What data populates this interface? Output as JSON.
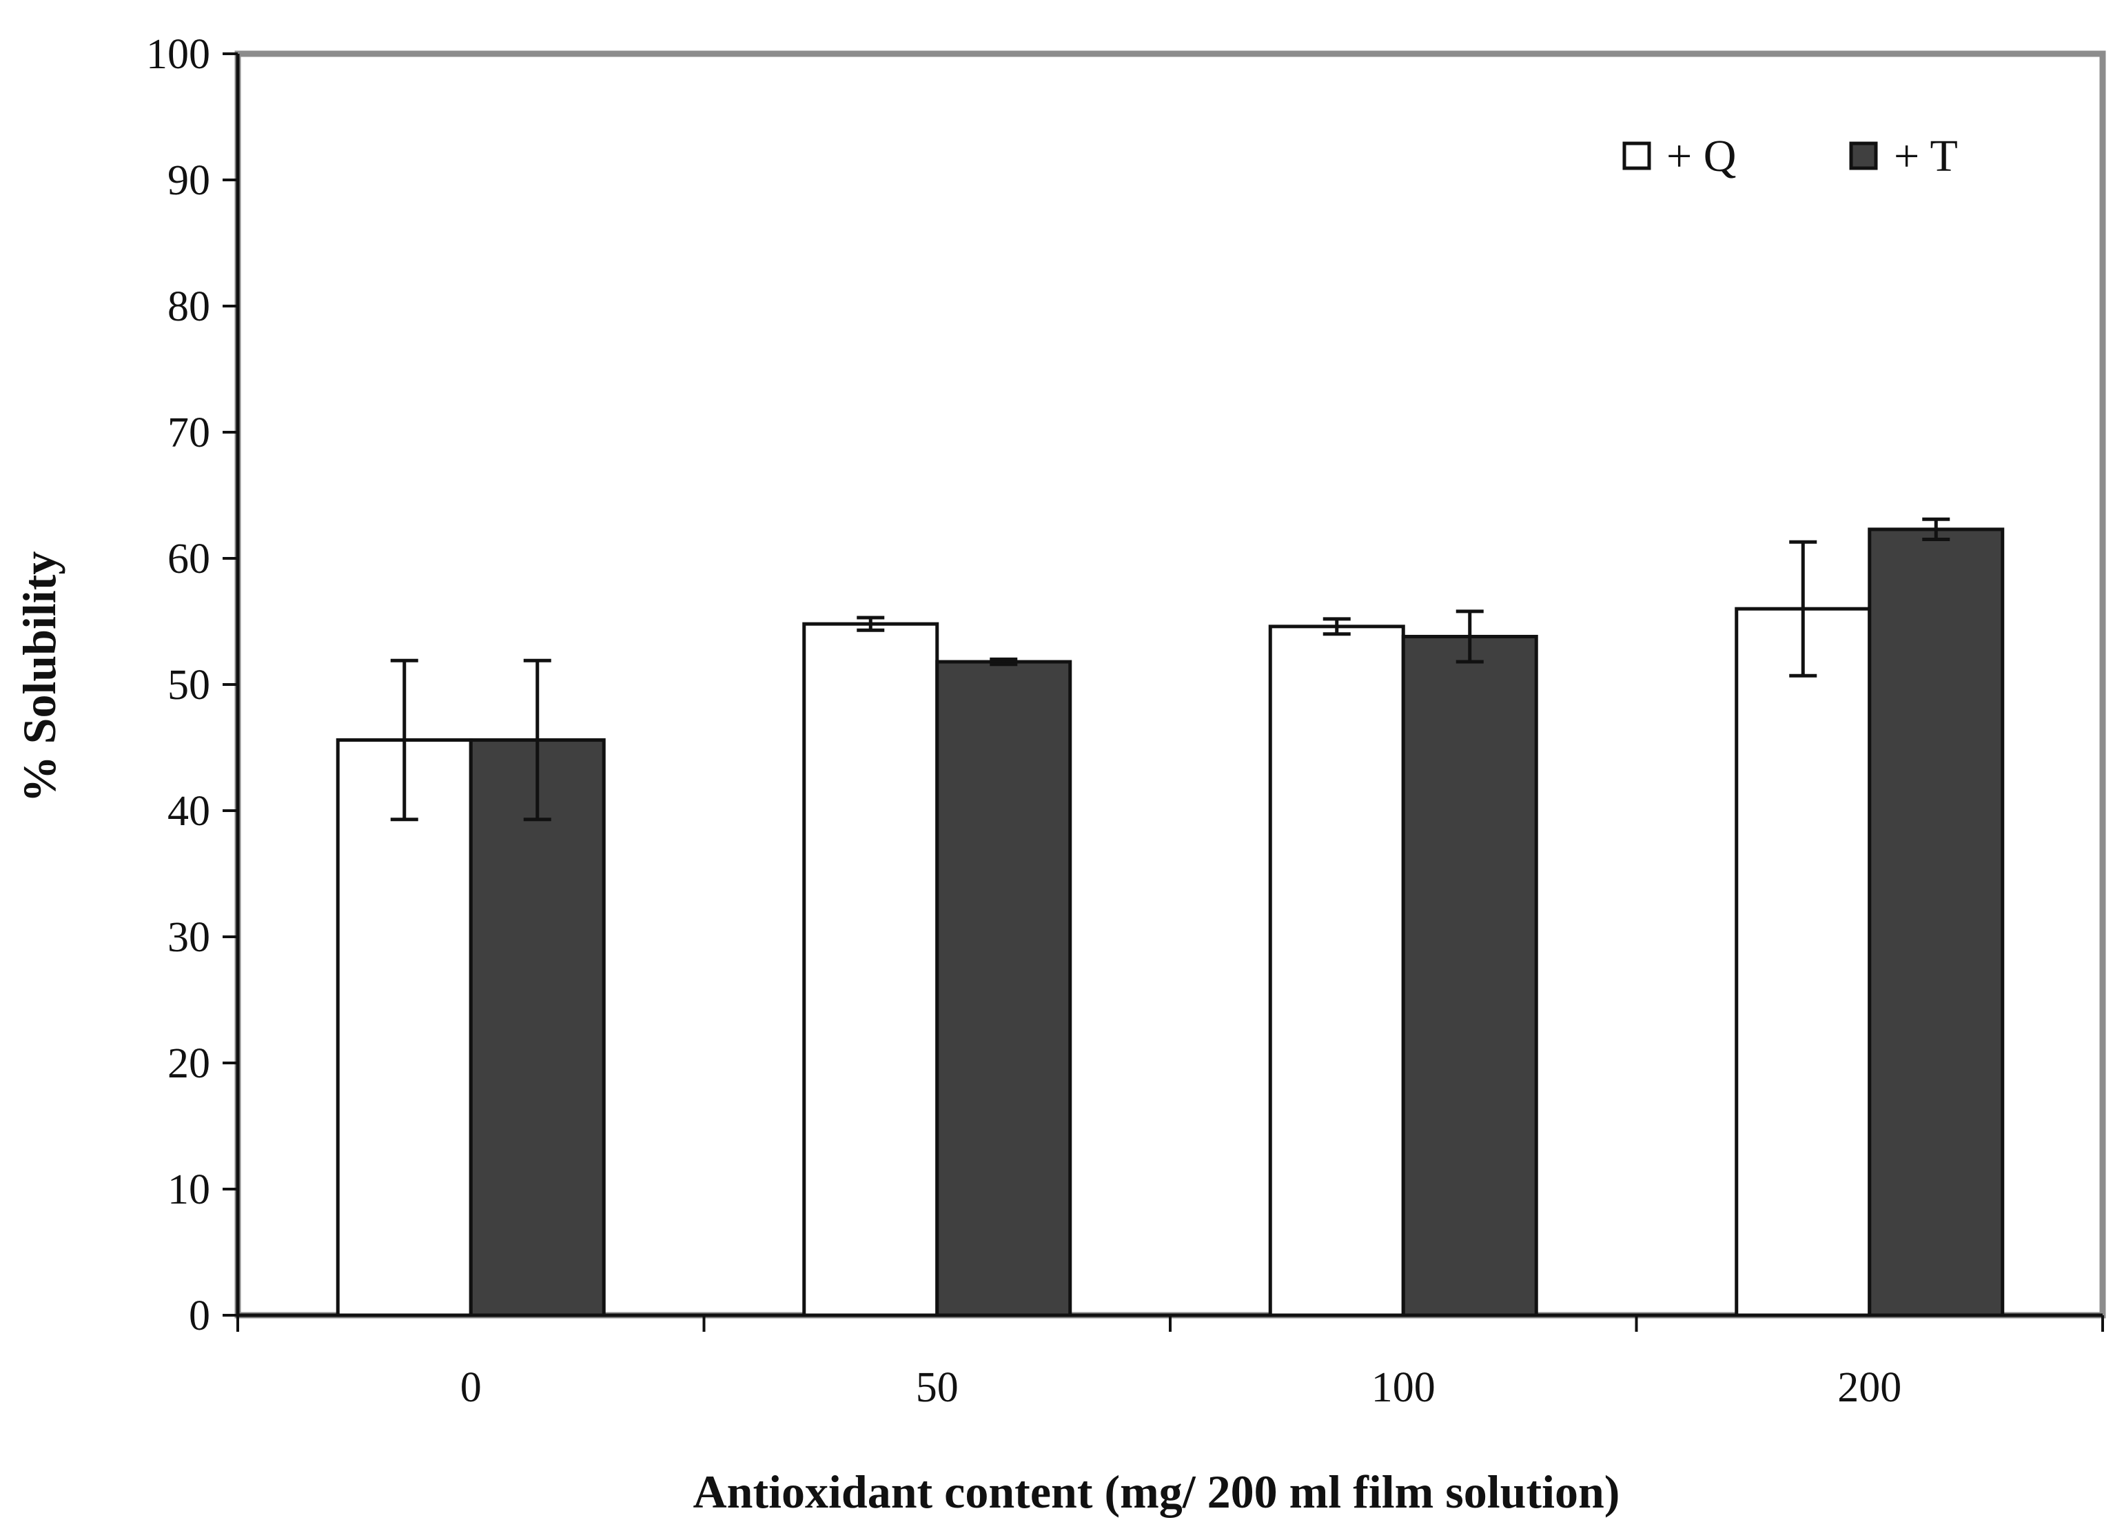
{
  "chart_data": {
    "type": "bar",
    "title": "",
    "xlabel": "Antioxidant  content (mg/ 200 ml film solution)",
    "ylabel": "% Solubility",
    "categories": [
      "0",
      "50",
      "100",
      "200"
    ],
    "ylim": [
      0,
      100
    ],
    "yticks": [
      "0",
      "10",
      "20",
      "30",
      "40",
      "50",
      "60",
      "70",
      "80",
      "90",
      "100"
    ],
    "grid": false,
    "legend_position": "top-right",
    "series": [
      {
        "name": "+ Q",
        "color": "#ffffff",
        "values": [
          45.6,
          54.8,
          54.6,
          56.0
        ],
        "errors": [
          6.3,
          0.5,
          0.6,
          5.3
        ]
      },
      {
        "name": "+ T",
        "color": "#404040",
        "values": [
          45.6,
          51.8,
          53.8,
          62.3
        ],
        "errors": [
          6.3,
          0.2,
          2.0,
          0.8
        ]
      }
    ]
  }
}
